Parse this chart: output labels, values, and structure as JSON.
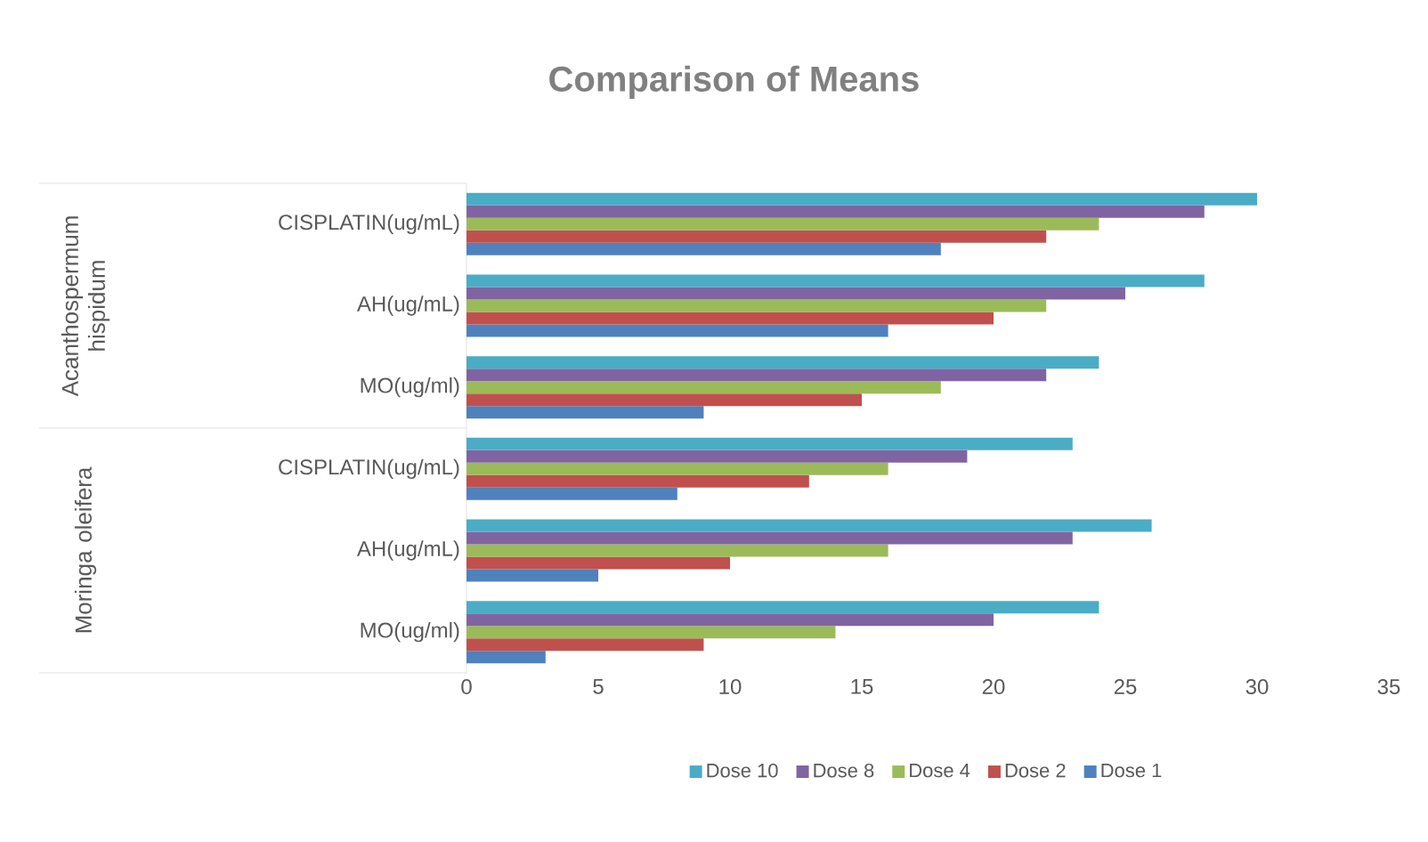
{
  "chart_data": {
    "type": "bar",
    "orientation": "horizontal",
    "title": "Comparison of Means",
    "categories": [
      "CISPLATIN(ug/mL)",
      "AH(ug/mL)",
      "MO(ug/ml)",
      "CISPLATIN(ug/mL)",
      "AH(ug/mL)",
      "MO(ug/ml)"
    ],
    "annotations": [
      "Acanthospermum hispidum",
      "Moringa oleifera"
    ],
    "series": [
      {
        "name": "Dose 1",
        "color": "#4f81bd",
        "values": [
          18,
          16,
          9,
          8,
          5,
          3
        ]
      },
      {
        "name": "Dose 2",
        "color": "#c0504d",
        "values": [
          22,
          20,
          15,
          13,
          10,
          9
        ]
      },
      {
        "name": "Dose 4",
        "color": "#9bbb59",
        "values": [
          24,
          22,
          18,
          16,
          16,
          14
        ]
      },
      {
        "name": "Dose 8",
        "color": "#8064a2",
        "values": [
          28,
          25,
          22,
          19,
          23,
          20
        ]
      },
      {
        "name": "Dose 10",
        "color": "#4bacc6",
        "values": [
          30,
          28,
          24,
          23,
          26,
          24
        ]
      }
    ],
    "xlim": [
      0,
      35
    ],
    "xticks": [
      0,
      5,
      10,
      15,
      20,
      25,
      30,
      35
    ],
    "legend": "bottom"
  }
}
